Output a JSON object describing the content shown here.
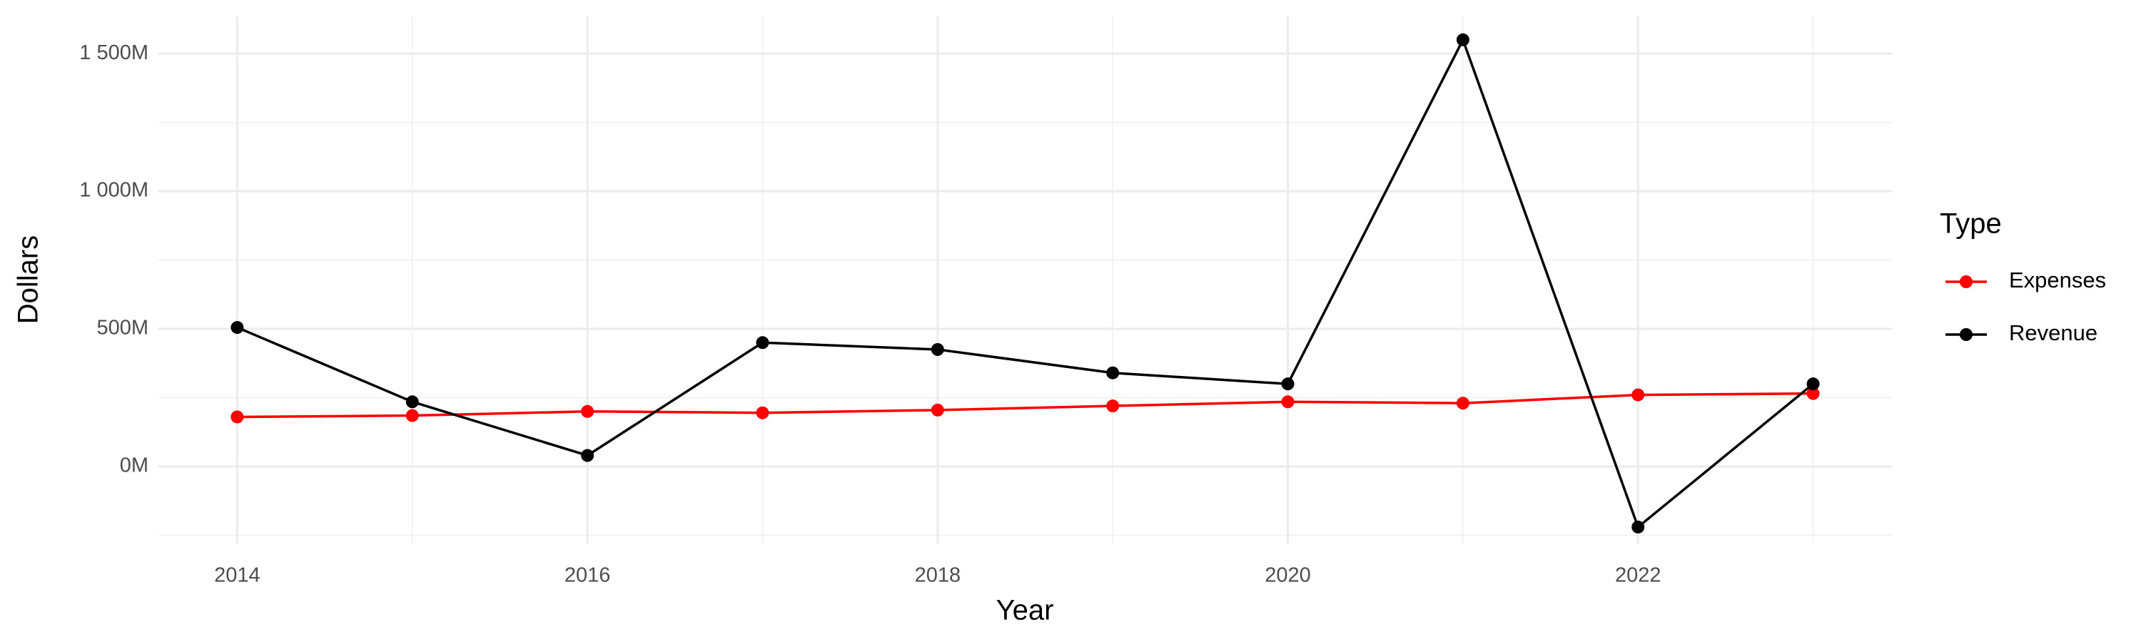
{
  "chart_data": {
    "type": "line",
    "x_label": "Year",
    "y_label": "Dollars",
    "legend_title": "Type",
    "x": [
      2014,
      2015,
      2016,
      2017,
      2018,
      2019,
      2020,
      2021,
      2022,
      2023
    ],
    "series": [
      {
        "name": "Expenses",
        "color": "#ff0000",
        "values": [
          180,
          185,
          200,
          195,
          205,
          220,
          235,
          230,
          260,
          265
        ]
      },
      {
        "name": "Revenue",
        "color": "#000000",
        "values": [
          505,
          235,
          40,
          450,
          425,
          340,
          300,
          1550,
          -220,
          300
        ]
      }
    ],
    "xlim": [
      2013.55,
      2023.45
    ],
    "xticks": [
      2014,
      2016,
      2018,
      2020,
      2022
    ],
    "ylim": [
      -280,
      1635
    ],
    "yticks": [
      {
        "value": 0,
        "label": "0M"
      },
      {
        "value": 500,
        "label": "500M"
      },
      {
        "value": 1000,
        "label": "1 000M"
      },
      {
        "value": 1500,
        "label": "1 500M"
      }
    ],
    "grid": true,
    "legend": "right"
  }
}
